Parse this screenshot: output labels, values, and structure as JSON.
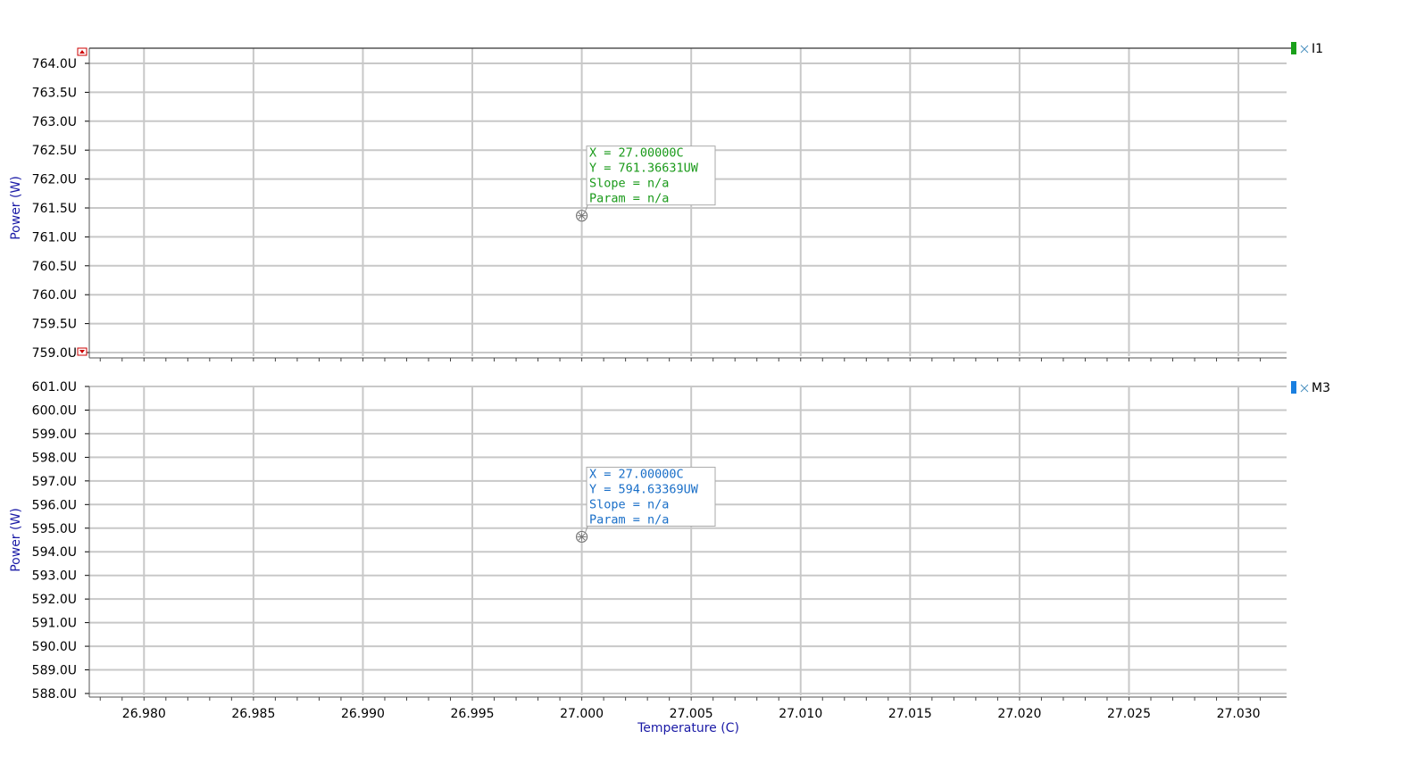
{
  "chart_data": [
    {
      "type": "scatter",
      "ylabel": "Power (W)",
      "ylim": [
        759.0,
        764.0
      ],
      "yticks": [
        "764.0U",
        "763.5U",
        "763.0U",
        "762.5U",
        "762.0U",
        "761.5U",
        "761.0U",
        "760.5U",
        "760.0U",
        "759.5U",
        "759.0U"
      ],
      "series": [
        {
          "name": "I1",
          "color": "#1aa01a",
          "x": [
            27.0
          ],
          "values": [
            761.36631
          ]
        }
      ],
      "marker": {
        "lines": [
          "X = 27.00000C",
          "Y = 761.36631UW",
          "Slope = n/a",
          "Param = n/a"
        ],
        "color": "#1a9a1a"
      },
      "grid": true,
      "legend": "top-right"
    },
    {
      "type": "scatter",
      "xlabel": "Temperature (C)",
      "ylabel": "Power (W)",
      "xlim": [
        26.9775,
        27.0322
      ],
      "ylim": [
        588.0,
        601.0
      ],
      "xticks": [
        "26.980",
        "26.985",
        "26.990",
        "26.995",
        "27.000",
        "27.005",
        "27.010",
        "27.015",
        "27.020",
        "27.025",
        "27.030"
      ],
      "yticks": [
        "601.0U",
        "600.0U",
        "599.0U",
        "598.0U",
        "597.0U",
        "596.0U",
        "595.0U",
        "594.0U",
        "593.0U",
        "592.0U",
        "591.0U",
        "590.0U",
        "589.0U",
        "588.0U"
      ],
      "series": [
        {
          "name": "M3",
          "color": "#1a7fe0",
          "x": [
            27.0
          ],
          "values": [
            594.63369
          ]
        }
      ],
      "marker": {
        "lines": [
          "X = 27.00000C",
          "Y = 594.63369UW",
          "Slope = n/a",
          "Param = n/a"
        ],
        "color": "#1a6fc8"
      },
      "grid": true,
      "legend": "top-right"
    }
  ]
}
